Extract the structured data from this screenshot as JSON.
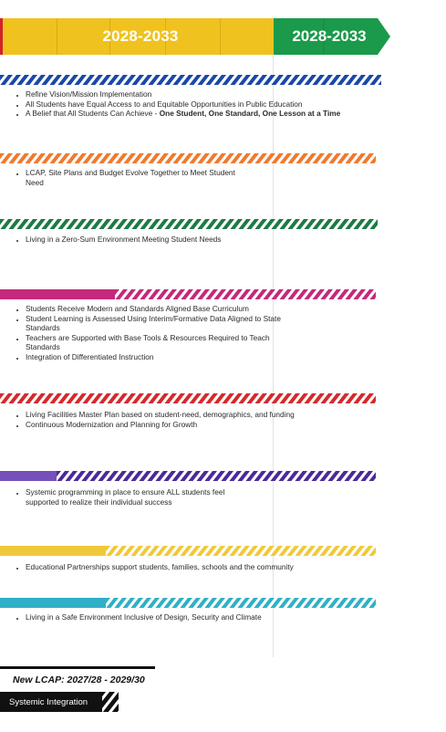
{
  "header": {
    "yellow_period": "2028-2033",
    "green_period": "2028-2033"
  },
  "colors": {
    "yellow": "#efc21f",
    "green": "#1b9a4b",
    "red_edge": "#d1232a"
  },
  "rows": [
    {
      "name": "blue",
      "color": "#1b48a8",
      "items": [
        "Refine Vision/Mission Implementation",
        "All Students have Equal Access to and Equitable Opportunities in Public Education",
        "A Belief that All Students Can Achieve -"
      ],
      "item3_bold": "One Student, One Standard, One Lesson at a Time"
    },
    {
      "name": "orange",
      "color": "#f07a2e",
      "items": [
        "LCAP, Site Plans and Budget Evolve Together to Meet Student Need"
      ]
    },
    {
      "name": "green",
      "color": "#1f7a45",
      "items": [
        "Living in a Zero-Sum Environment Meeting Student Needs"
      ]
    },
    {
      "name": "magenta",
      "color": "#c4297d",
      "items": [
        "Students Receive Modern and Standards Aligned Base Curriculum",
        "Student Learning is Assessed Using Interim/Formative Data Aligned to State Standards",
        "Teachers are Supported with Base Tools & Resources Required to Teach Standards",
        "Integration of Differentiated Instruction"
      ]
    },
    {
      "name": "red",
      "color": "#d42a2e",
      "items": [
        "Living Facilities Master Plan based on student-need, demographics, and funding",
        "Continuous Modernization and Planning for Growth"
      ]
    },
    {
      "name": "purple",
      "color": "#4a2a9a",
      "solid_color": "#7650b8",
      "items": [
        "Systemic programming in place to ensure ALL students feel supported to realize their individual success"
      ]
    },
    {
      "name": "yellow",
      "color": "#f0c93a",
      "items": [
        "Educational Partnerships support students, families, schools and the community"
      ]
    },
    {
      "name": "teal",
      "color": "#2fb0c6",
      "items": [
        "Living in a Safe Environment Inclusive of Design, Security and Climate"
      ]
    }
  ],
  "legend": {
    "lcap": "New LCAP: 2027/28 - 2029/30",
    "systemic": "Systemic Integration"
  }
}
